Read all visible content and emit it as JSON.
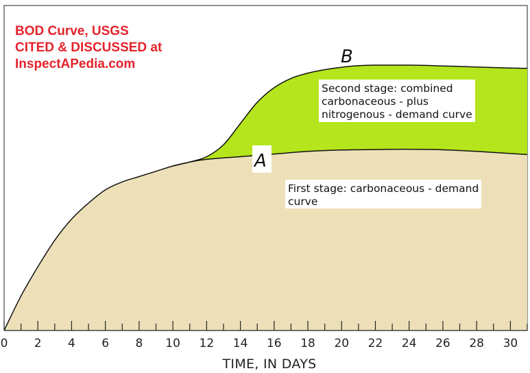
{
  "watermark": {
    "line1": "BOD Curve, USGS",
    "line2": "CITED & DISCUSSED at",
    "line3": "InspectAPedia.com"
  },
  "colors": {
    "first_stage_fill": "#ede0b8",
    "second_stage_fill": "#b5e51d",
    "curve": "#111111",
    "watermark": "#e4232b"
  },
  "chart_data": {
    "type": "area",
    "title": "",
    "xlabel": "TIME, IN DAYS",
    "ylabel": "",
    "xlim": [
      0,
      31
    ],
    "xticks": [
      0,
      2,
      4,
      6,
      8,
      10,
      12,
      14,
      16,
      18,
      20,
      22,
      24,
      26,
      28,
      30
    ],
    "ylim": [
      0,
      1
    ],
    "grid": false,
    "legend": "none",
    "series": [
      {
        "name": "A",
        "label": "First stage: carbonaceous - demand curve",
        "x": [
          0,
          1,
          2,
          3,
          4,
          5,
          6,
          7,
          8,
          9,
          10,
          11,
          12,
          14,
          16,
          18,
          20,
          22,
          24,
          26,
          28,
          30,
          31
        ],
        "y": [
          0.0,
          0.13,
          0.24,
          0.34,
          0.42,
          0.48,
          0.53,
          0.56,
          0.58,
          0.6,
          0.62,
          0.635,
          0.645,
          0.655,
          0.665,
          0.675,
          0.68,
          0.682,
          0.683,
          0.681,
          0.675,
          0.667,
          0.663
        ]
      },
      {
        "name": "B",
        "label": "Second stage: combined carbonaceous - plus nitrogenous - demand curve",
        "x": [
          10,
          11,
          12,
          13,
          14,
          15,
          16,
          17,
          18,
          19,
          20,
          21,
          22,
          23,
          24,
          25,
          26,
          27,
          28,
          29,
          30,
          31
        ],
        "y": [
          0.62,
          0.635,
          0.655,
          0.7,
          0.78,
          0.86,
          0.915,
          0.95,
          0.97,
          0.983,
          0.992,
          0.998,
          1.0,
          1.0,
          1.0,
          0.999,
          0.997,
          0.995,
          0.993,
          0.991,
          0.989,
          0.988
        ]
      }
    ],
    "annotations": {
      "letter_a": "A",
      "letter_b": "B",
      "second_stage_line1": "Second stage: combined",
      "second_stage_line2": "carbonaceous - plus",
      "second_stage_line3": "nitrogenous - demand curve",
      "first_stage_line1": "First stage: carbonaceous - demand",
      "first_stage_line2": "curve"
    }
  }
}
